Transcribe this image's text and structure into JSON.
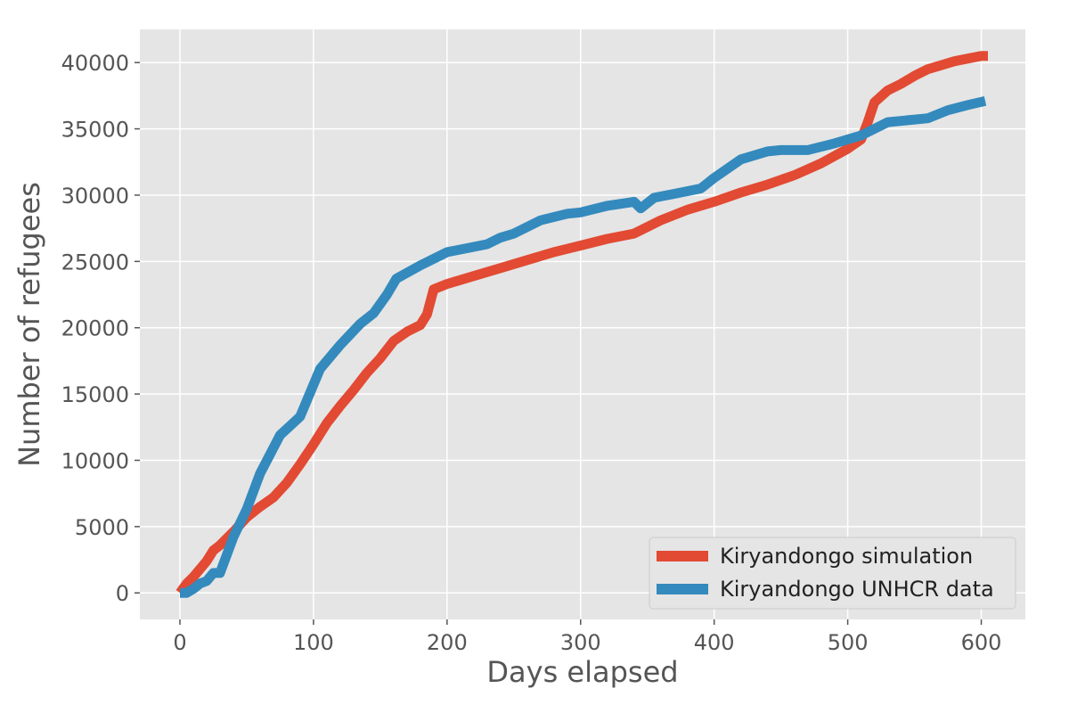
{
  "chart_data": {
    "type": "line",
    "title": "",
    "xlabel": "Days elapsed",
    "ylabel": "Number of refugees",
    "xlim": [
      -30,
      633
    ],
    "ylim": [
      -2000,
      42500
    ],
    "xticks": [
      0,
      100,
      200,
      300,
      400,
      500,
      600
    ],
    "yticks": [
      0,
      5000,
      10000,
      15000,
      20000,
      25000,
      30000,
      35000,
      40000
    ],
    "grid": true,
    "legend_position": "bottom-right",
    "background": "#e5e5e5",
    "series": [
      {
        "name": "Kiryandongo simulation",
        "color": "#e24a33",
        "x": [
          0,
          5,
          10,
          15,
          20,
          25,
          30,
          40,
          50,
          60,
          70,
          80,
          90,
          100,
          110,
          120,
          130,
          140,
          150,
          160,
          170,
          180,
          185,
          190,
          200,
          210,
          220,
          240,
          260,
          280,
          300,
          320,
          340,
          360,
          380,
          400,
          420,
          440,
          460,
          480,
          500,
          510,
          515,
          520,
          530,
          540,
          550,
          560,
          570,
          580,
          590,
          600,
          605
        ],
        "y": [
          0,
          700,
          1200,
          1800,
          2400,
          3200,
          3600,
          4600,
          5700,
          6500,
          7200,
          8300,
          9700,
          11200,
          12800,
          14100,
          15300,
          16600,
          17700,
          19000,
          19700,
          20200,
          21000,
          22900,
          23300,
          23600,
          23900,
          24500,
          25100,
          25700,
          26200,
          26700,
          27100,
          28100,
          28900,
          29500,
          30200,
          30800,
          31500,
          32400,
          33500,
          34200,
          35500,
          37000,
          37900,
          38400,
          39000,
          39500,
          39800,
          40100,
          40300,
          40500,
          40500
        ]
      },
      {
        "name": "Kiryandongo UNHCR data",
        "color": "#348abd",
        "x": [
          0,
          5,
          10,
          15,
          20,
          25,
          30,
          40,
          50,
          60,
          75,
          90,
          105,
          120,
          135,
          145,
          155,
          162,
          180,
          200,
          215,
          230,
          240,
          250,
          270,
          290,
          300,
          320,
          340,
          345,
          355,
          370,
          390,
          400,
          420,
          440,
          450,
          470,
          490,
          510,
          530,
          560,
          575,
          590,
          603
        ],
        "y": [
          0,
          0,
          300,
          700,
          900,
          1500,
          1500,
          4200,
          6300,
          9000,
          11900,
          13300,
          16900,
          18700,
          20300,
          21100,
          22500,
          23700,
          24700,
          25700,
          26000,
          26300,
          26800,
          27100,
          28100,
          28600,
          28700,
          29200,
          29500,
          29000,
          29800,
          30100,
          30500,
          31300,
          32700,
          33300,
          33400,
          33400,
          33900,
          34500,
          35500,
          35800,
          36400,
          36800,
          37100
        ]
      }
    ]
  }
}
